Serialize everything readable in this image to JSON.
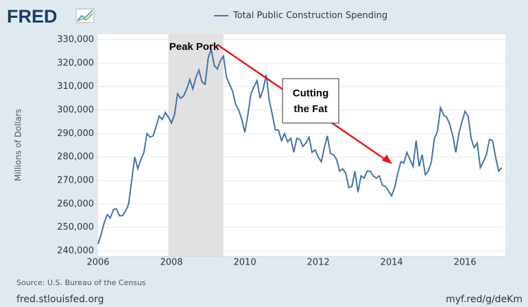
{
  "brand": "FRED",
  "chart_data": {
    "type": "line",
    "series": [
      {
        "name": "Total Public Construction Spending",
        "color": "#4572a7",
        "values": [
          243000,
          247000,
          252000,
          255500,
          254000,
          257500,
          258000,
          255000,
          255000,
          257000,
          260000,
          270000,
          280000,
          275000,
          279000,
          282000,
          290000,
          288500,
          289000,
          293000,
          297500,
          296000,
          299000,
          297000,
          294500,
          298000,
          307000,
          305000,
          306000,
          309000,
          313000,
          309000,
          314000,
          317000,
          312000,
          311000,
          322000,
          326000,
          319000,
          317500,
          321000,
          323000,
          314000,
          311000,
          308000,
          302500,
          300000,
          296000,
          290500,
          298000,
          307000,
          310000,
          312500,
          305000,
          309000,
          315000,
          304000,
          298000,
          291500,
          291500,
          287000,
          290000,
          286500,
          288000,
          282000,
          288000,
          287500,
          284500,
          286000,
          288500,
          282000,
          283000,
          280000,
          278000,
          284000,
          289000,
          281500,
          281000,
          279000,
          274000,
          275000,
          273000,
          267000,
          267500,
          274000,
          265000,
          272000,
          271000,
          274000,
          274000,
          272000,
          271000,
          272000,
          268000,
          267500,
          265500,
          263500,
          267000,
          273000,
          278000,
          277500,
          282000,
          279000,
          276000,
          287000,
          276000,
          281000,
          272500,
          274000,
          278000,
          288000,
          291000,
          301000,
          298000,
          297000,
          294000,
          289000,
          282000,
          290000,
          295000,
          299500,
          297500,
          288000,
          284000,
          286000,
          275500,
          278000,
          281000,
          287500,
          287000,
          280000,
          274000,
          275500
        ]
      }
    ],
    "x": [
      2006,
      2006.083,
      2006.167,
      2006.25,
      2006.333,
      2006.417,
      2006.5,
      2006.583,
      2006.667,
      2006.75,
      2006.833,
      2006.917,
      2007,
      2007.083,
      2007.167,
      2007.25,
      2007.333,
      2007.417,
      2007.5,
      2007.583,
      2007.667,
      2007.75,
      2007.833,
      2007.917,
      2008,
      2008.083,
      2008.167,
      2008.25,
      2008.333,
      2008.417,
      2008.5,
      2008.583,
      2008.667,
      2008.75,
      2008.833,
      2008.917,
      2009,
      2009.083,
      2009.167,
      2009.25,
      2009.333,
      2009.417,
      2009.5,
      2009.583,
      2009.667,
      2009.75,
      2009.833,
      2009.917,
      2010,
      2010.083,
      2010.167,
      2010.25,
      2010.333,
      2010.417,
      2010.5,
      2010.583,
      2010.667,
      2010.75,
      2010.833,
      2010.917,
      2011,
      2011.083,
      2011.167,
      2011.25,
      2011.333,
      2011.417,
      2011.5,
      2011.583,
      2011.667,
      2011.75,
      2011.833,
      2011.917,
      2012,
      2012.083,
      2012.167,
      2012.25,
      2012.333,
      2012.417,
      2012.5,
      2012.583,
      2012.667,
      2012.75,
      2012.833,
      2012.917,
      2013,
      2013.083,
      2013.167,
      2013.25,
      2013.333,
      2013.417,
      2013.5,
      2013.583,
      2013.667,
      2013.75,
      2013.833,
      2013.917,
      2014,
      2014.083,
      2014.167,
      2014.25,
      2014.333,
      2014.417,
      2014.5,
      2014.583,
      2014.667,
      2014.75,
      2014.833,
      2014.917,
      2015,
      2015.083,
      2015.167,
      2015.25,
      2015.333,
      2015.417,
      2015.5,
      2015.583,
      2015.667,
      2015.75,
      2015.833,
      2015.917,
      2016,
      2016.083,
      2016.167,
      2016.25,
      2016.333,
      2016.417,
      2016.5,
      2016.583,
      2016.667,
      2016.75,
      2016.833,
      2016.917,
      2017
    ],
    "recession": [
      2007.917,
      2009.417
    ],
    "xlim": [
      2006,
      2017.1
    ],
    "xticks": [
      2006,
      2008,
      2010,
      2012,
      2014,
      2016
    ],
    "ylim": [
      240000,
      330000
    ],
    "yticks": [
      {
        "value": 240000,
        "label": "240,000"
      },
      {
        "value": 250000,
        "label": "250,000"
      },
      {
        "value": 260000,
        "label": "260,000"
      },
      {
        "value": 270000,
        "label": "270,000"
      },
      {
        "value": 280000,
        "label": "280,000"
      },
      {
        "value": 290000,
        "label": "290,000"
      },
      {
        "value": 300000,
        "label": "300,000"
      },
      {
        "value": 310000,
        "label": "310,000"
      },
      {
        "value": 320000,
        "label": "320,000"
      },
      {
        "value": 330000,
        "label": "330,000"
      }
    ],
    "grid": true,
    "y_label": "Millions of Dollars",
    "annotations": [
      "Peak Pork",
      [
        "Cutting",
        "the Fat"
      ]
    ],
    "source": "Source: U.S. Bureau of the Census"
  },
  "footer": {
    "left": "fred.stlouisfed.org",
    "right": "myf.red/g/deKm"
  }
}
